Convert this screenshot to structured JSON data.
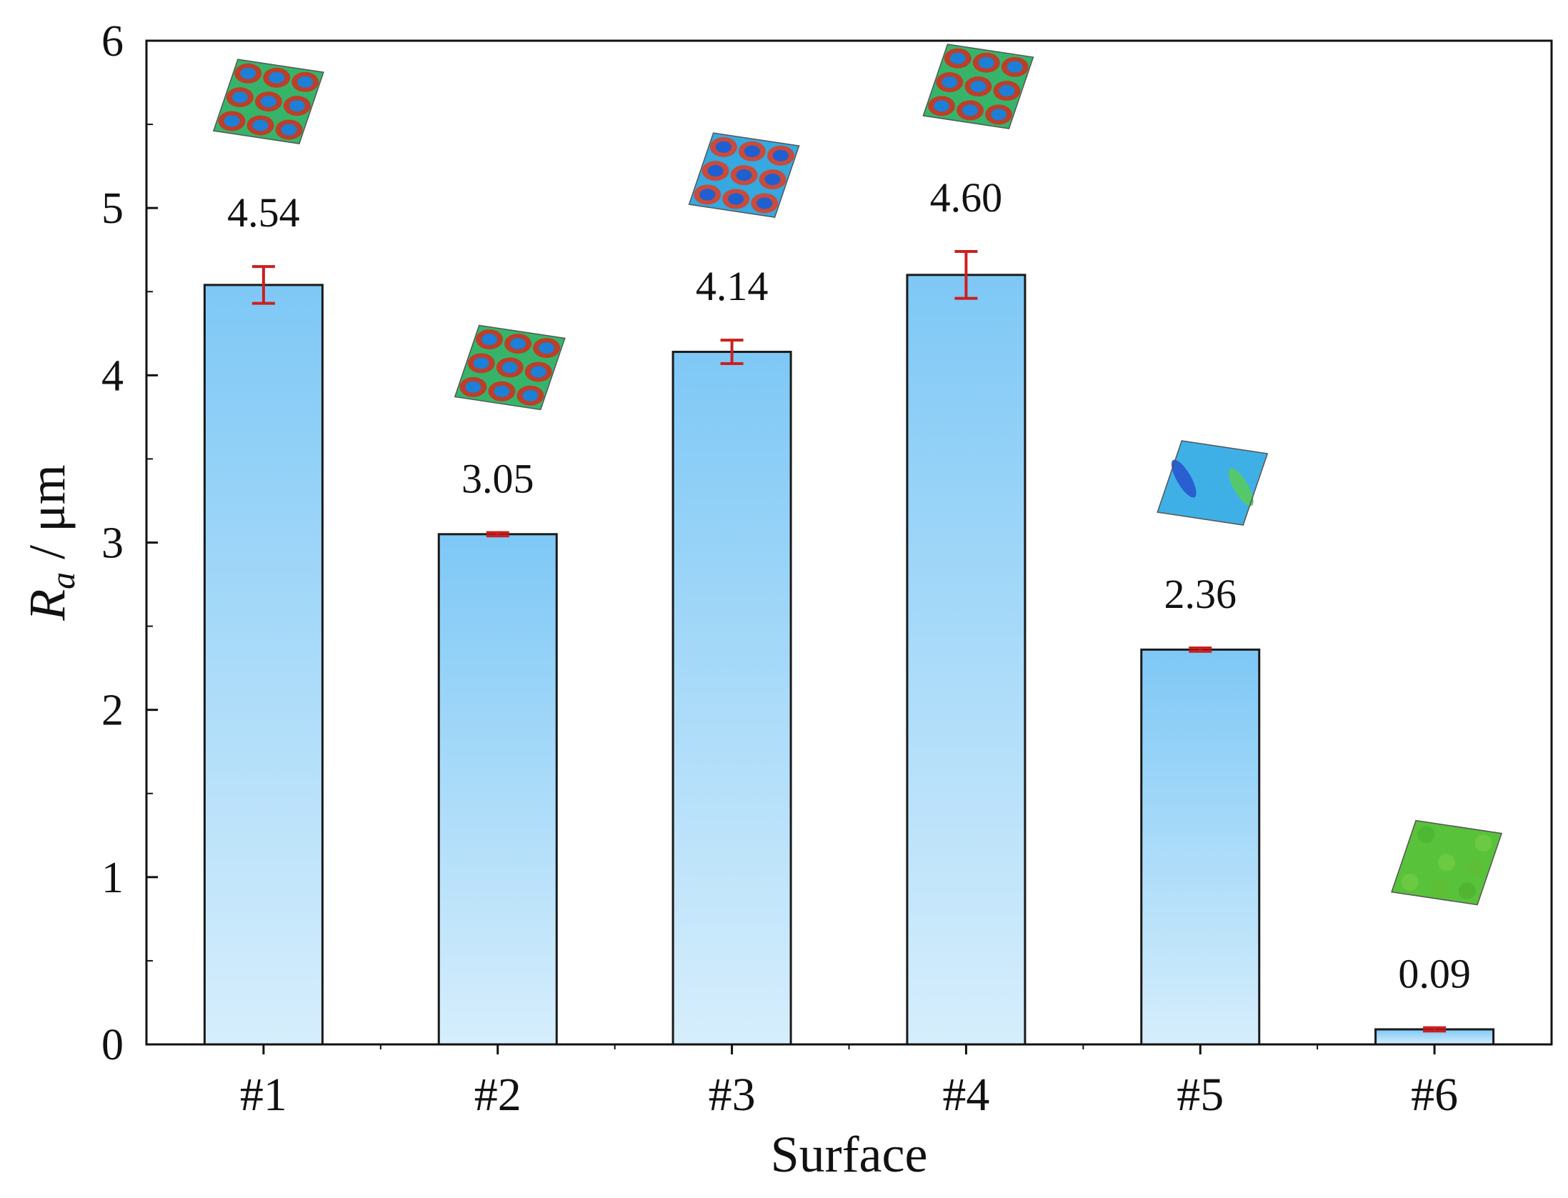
{
  "chart_data": {
    "type": "bar",
    "title": "",
    "xlabel": "Surface",
    "ylabel": {
      "symbol": "R",
      "subscript": "a",
      "unit": " / μm"
    },
    "categories": [
      "#1",
      "#2",
      "#3",
      "#4",
      "#5",
      "#6"
    ],
    "values": [
      4.54,
      3.05,
      4.14,
      4.6,
      2.36,
      0.09
    ],
    "value_labels": [
      "4.54",
      "3.05",
      "4.14",
      "4.60",
      "2.36",
      "0.09"
    ],
    "error": [
      0.11,
      0.01,
      0.07,
      0.14,
      0.01,
      0.01
    ],
    "ylim": [
      0,
      6
    ],
    "yticks": [
      0,
      1,
      2,
      3,
      4,
      5,
      6
    ],
    "ytick_labels": [
      "0",
      "1",
      "2",
      "3",
      "4",
      "5",
      "6"
    ],
    "grid": false,
    "legend": false,
    "inset_images": [
      "surface-3d-map-1",
      "surface-3d-map-2",
      "surface-3d-map-3",
      "surface-3d-map-4",
      "surface-3d-map-5",
      "surface-3d-map-6"
    ],
    "colors": {
      "bar_top": "#7ec8f6",
      "bar_bottom": "#d6eefc",
      "bar_edge": "#1a1a1a",
      "error_bar": "#cc1f1f",
      "axis": "#111111"
    }
  }
}
